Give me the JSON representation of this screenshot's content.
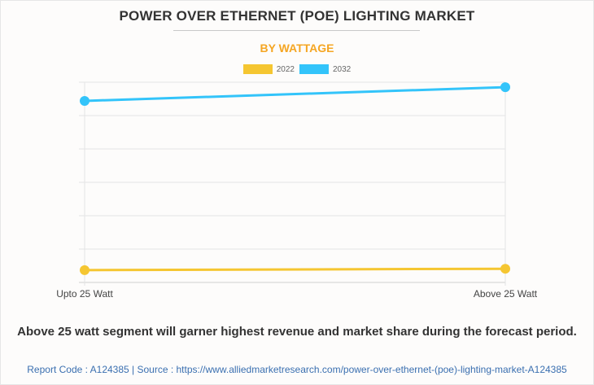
{
  "title": "POWER OVER ETHERNET (POE) LIGHTING MARKET",
  "subtitle": "BY WATTAGE",
  "caption": "Above 25 watt segment will garner highest revenue and market share during the forecast period.",
  "source_line": "Report Code : A124385  |  Source : https://www.alliedmarketresearch.com/power-over-ethernet-(poe)-lighting-market-A124385",
  "colors": {
    "s2022": "#f5c631",
    "s2032": "#33c4fa",
    "grid": "#e4e4e4",
    "subtitle": "#f5a623"
  },
  "chart_data": {
    "type": "line",
    "title": "POWER OVER ETHERNET (POE) LIGHTING MARKET",
    "subtitle": "BY WATTAGE",
    "categories": [
      "Upto 25 Watt",
      "Above 25 Watt"
    ],
    "series": [
      {
        "name": "2022",
        "values": [
          0.37,
          0.41
        ],
        "color": "#f5c631"
      },
      {
        "name": "2032",
        "values": [
          5.44,
          5.85
        ],
        "color": "#33c4fa"
      }
    ],
    "ylim": [
      0,
      6
    ],
    "grid": true,
    "legend": "top-center",
    "xlabel": "",
    "ylabel": ""
  }
}
